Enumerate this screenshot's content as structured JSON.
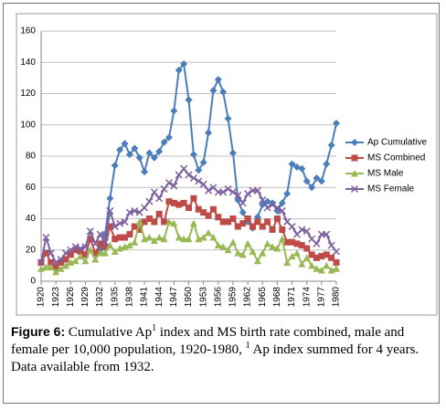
{
  "chart_data": {
    "type": "line",
    "x": [
      1920,
      1921,
      1922,
      1923,
      1924,
      1925,
      1926,
      1927,
      1928,
      1929,
      1930,
      1931,
      1932,
      1933,
      1934,
      1935,
      1936,
      1937,
      1938,
      1939,
      1940,
      1941,
      1942,
      1943,
      1944,
      1945,
      1946,
      1947,
      1948,
      1949,
      1950,
      1951,
      1952,
      1953,
      1954,
      1955,
      1956,
      1957,
      1958,
      1959,
      1960,
      1961,
      1962,
      1963,
      1964,
      1965,
      1966,
      1967,
      1968,
      1969,
      1970,
      1971,
      1972,
      1973,
      1974,
      1975,
      1976,
      1977,
      1978,
      1979,
      1980
    ],
    "xlim": [
      1920,
      1980
    ],
    "xticks": [
      1920,
      1923,
      1926,
      1929,
      1932,
      1935,
      1938,
      1941,
      1944,
      1947,
      1950,
      1953,
      1956,
      1959,
      1962,
      1965,
      1968,
      1971,
      1974,
      1977,
      1980
    ],
    "ylim": [
      0,
      160
    ],
    "yticks": [
      0,
      20,
      40,
      60,
      80,
      100,
      120,
      140,
      160
    ],
    "grid": true,
    "legend": "right",
    "series": [
      {
        "name": "Ap Cumulative",
        "color": "#4a7ebb",
        "values": [
          null,
          null,
          null,
          null,
          null,
          null,
          null,
          null,
          null,
          null,
          null,
          null,
          20,
          30,
          53,
          74,
          84,
          88,
          81,
          85,
          79,
          70,
          82,
          79,
          83,
          89,
          92,
          109,
          135,
          139,
          116,
          81,
          71,
          76,
          95,
          122,
          129,
          121,
          104,
          82,
          52,
          44,
          38,
          34,
          41,
          49,
          51,
          50,
          45,
          50,
          56,
          75,
          73,
          72,
          64,
          60,
          66,
          64,
          75,
          87,
          101
        ]
      },
      {
        "name": "MS Combined",
        "color": "#be4b48",
        "values": [
          12,
          18,
          12,
          9,
          12,
          14,
          17,
          20,
          19,
          17,
          27,
          18,
          24,
          22,
          35,
          27,
          28,
          28,
          30,
          35,
          33,
          38,
          40,
          38,
          43,
          38,
          51,
          50,
          49,
          50,
          47,
          53,
          46,
          44,
          42,
          46,
          41,
          38,
          38,
          40,
          35,
          37,
          40,
          35,
          38,
          35,
          38,
          33,
          40,
          33,
          25,
          25,
          24,
          23,
          21,
          17,
          15,
          16,
          17,
          15,
          12
        ]
      },
      {
        "name": "MS Male",
        "color": "#98b954",
        "values": [
          8,
          9,
          9,
          6,
          8,
          10,
          12,
          13,
          16,
          13,
          20,
          14,
          18,
          18,
          23,
          19,
          21,
          22,
          23,
          25,
          38,
          27,
          28,
          26,
          28,
          27,
          38,
          37,
          28,
          27,
          27,
          37,
          27,
          28,
          31,
          28,
          23,
          22,
          20,
          25,
          18,
          17,
          24,
          19,
          13,
          18,
          24,
          22,
          21,
          27,
          12,
          16,
          18,
          11,
          15,
          10,
          8,
          7,
          10,
          7,
          8
        ]
      },
      {
        "name": "MS Female",
        "color": "#7d60a0",
        "values": [
          12,
          28,
          18,
          12,
          14,
          18,
          20,
          22,
          21,
          22,
          32,
          24,
          30,
          25,
          45,
          35,
          37,
          38,
          44,
          45,
          44,
          47,
          51,
          57,
          53,
          59,
          63,
          61,
          68,
          72,
          68,
          66,
          64,
          62,
          58,
          60,
          57,
          57,
          59,
          57,
          55,
          50,
          56,
          58,
          58,
          52,
          47,
          49,
          47,
          45,
          38,
          35,
          30,
          33,
          32,
          27,
          24,
          30,
          30,
          23,
          19
        ]
      }
    ]
  },
  "caption": {
    "label": "Figure 6:",
    "text1": " Cumulative Ap",
    "sup1": "1",
    "text2": " index and MS birth rate combined, male and female per 10,000 population, 1920-1980, ",
    "sup2": "1",
    "text3": " Ap index summed for 4 years. Data available from 1932."
  }
}
